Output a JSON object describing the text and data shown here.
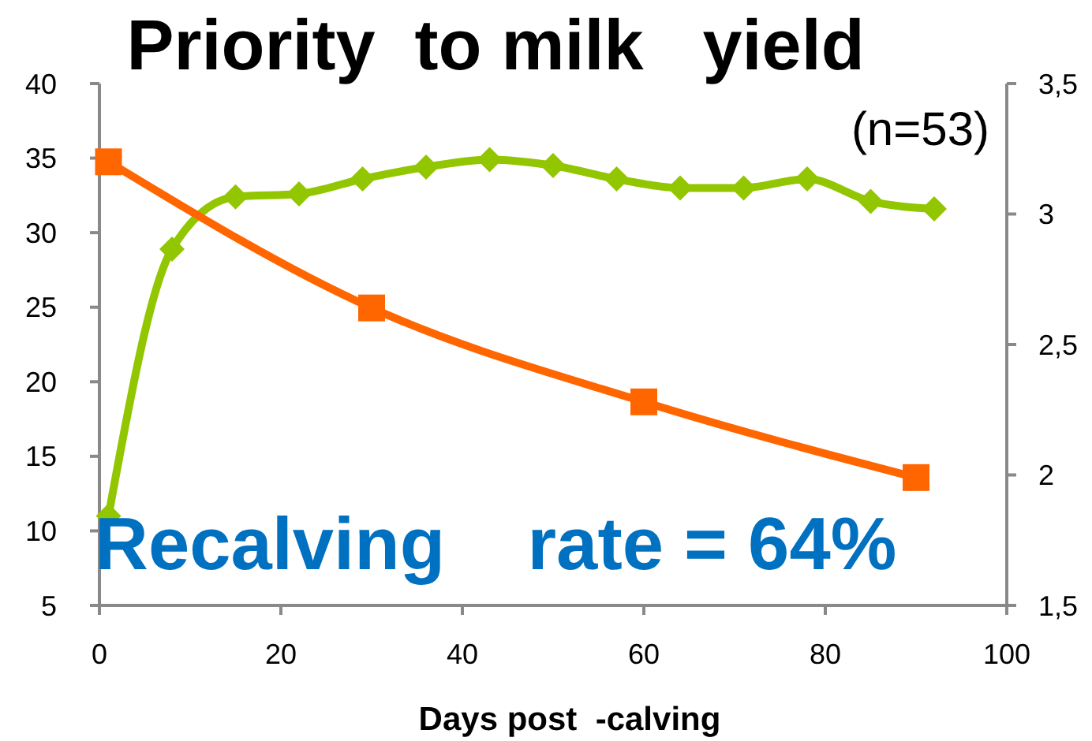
{
  "chart_data": {
    "type": "line",
    "title": "Priority  to milk   yield",
    "xlabel": "Days post  -calving",
    "annotations": [
      "(n=53)",
      "Recalving    rate = 64%"
    ],
    "xlim": [
      0,
      100
    ],
    "xticks": [
      0,
      20,
      40,
      60,
      80,
      100
    ],
    "ylim": [
      5,
      40
    ],
    "yticks": [
      5,
      10,
      15,
      20,
      25,
      30,
      35,
      40
    ],
    "y2lim": [
      1.5,
      3.5
    ],
    "y2ticks": [
      {
        "value": 1.5,
        "label": "1,5"
      },
      2,
      {
        "value": 2.5,
        "label": "2,5"
      },
      3,
      {
        "value": 3.5,
        "label": "3,5"
      }
    ],
    "series": [
      {
        "color": "#92c600",
        "marker": "diamond",
        "x": [
          1,
          8,
          15,
          22,
          29,
          36,
          43,
          50,
          57,
          64,
          71,
          78,
          85,
          92
        ],
        "values": [
          11,
          28.9,
          32.4,
          32.6,
          33.6,
          34.4,
          34.9,
          34.5,
          33.6,
          33,
          33,
          33.6,
          32.1,
          31.6
        ]
      },
      {
        "color": "#ff6600",
        "marker": "square",
        "axis": "y2",
        "x": [
          1,
          30,
          60,
          90
        ],
        "values": [
          3.2,
          2.64,
          2.28,
          1.99
        ]
      }
    ]
  }
}
